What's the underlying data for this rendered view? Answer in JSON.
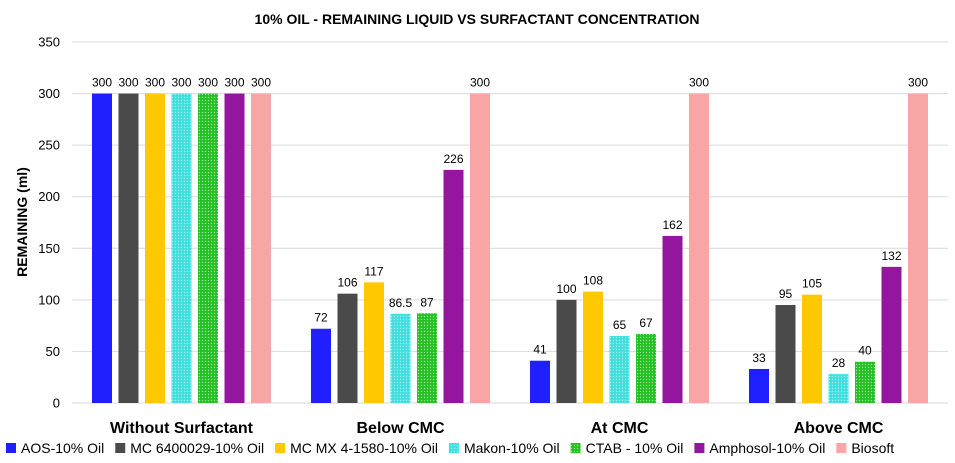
{
  "chart_data": {
    "type": "bar",
    "title": "10% OIL - REMAINING LIQUID  VS SURFACTANT CONCENTRATION",
    "xlabel": "",
    "ylabel": "REMAINING (ml)",
    "ylim": [
      0,
      350
    ],
    "yticks": [
      0,
      50,
      100,
      150,
      200,
      250,
      300,
      350
    ],
    "grid": true,
    "legend_position": "bottom",
    "categories": [
      "Without Surfactant",
      "Below CMC",
      "At CMC",
      "Above CMC"
    ],
    "series": [
      {
        "name": "AOS-10% Oil",
        "color": "#1f1fff",
        "pattern": "solid",
        "values": [
          300,
          72,
          41,
          33
        ],
        "labels": [
          "300",
          "72",
          "41",
          "33"
        ]
      },
      {
        "name": "MC 6400029-10% Oil",
        "color": "#4a4a4a",
        "pattern": "solid",
        "values": [
          300,
          106,
          100,
          95
        ],
        "labels": [
          "300",
          "106",
          "100",
          "95"
        ]
      },
      {
        "name": "MC MX 4-1580-10% Oil",
        "color": "#ffc800",
        "pattern": "solid",
        "values": [
          300,
          117,
          108,
          105
        ],
        "labels": [
          "300",
          "117",
          "108",
          "105"
        ]
      },
      {
        "name": "Makon-10% Oil",
        "color": "#3fdede",
        "pattern": "dots",
        "values": [
          300,
          86.5,
          65,
          28
        ],
        "labels": [
          "300",
          "86.5",
          "65",
          "28"
        ]
      },
      {
        "name": "CTAB - 10% Oil",
        "color": "#22c022",
        "pattern": "dots",
        "values": [
          300,
          87,
          67,
          40
        ],
        "labels": [
          "300",
          "87",
          "67",
          "40"
        ]
      },
      {
        "name": "Amphosol-10% Oil",
        "color": "#94169e",
        "pattern": "solid",
        "values": [
          300,
          226,
          162,
          132
        ],
        "labels": [
          "300",
          "226",
          "162",
          "132"
        ]
      },
      {
        "name": "Biosoft",
        "color": "#f8a5a5",
        "pattern": "solid",
        "values": [
          300,
          300,
          300,
          300
        ],
        "labels": [
          "300",
          "300",
          "300",
          "300"
        ]
      }
    ]
  }
}
